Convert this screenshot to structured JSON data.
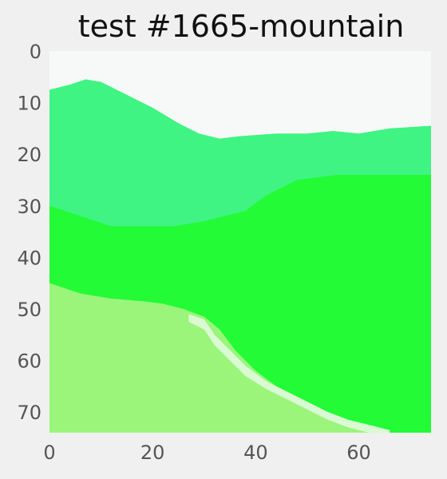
{
  "figure": {
    "background": "#f0f0f0"
  },
  "chart_data": {
    "type": "heatmap",
    "title": "test #1665-mountain",
    "xlabel": "",
    "ylabel": "",
    "x_ticks": [
      0,
      20,
      40,
      60
    ],
    "y_ticks": [
      0,
      10,
      20,
      30,
      40,
      50,
      60,
      70
    ],
    "xlim": [
      0,
      74
    ],
    "ylim": [
      74,
      0
    ],
    "grid": false,
    "colors": {
      "sky": "#f6f9f8",
      "upper_slope": "#3ff483",
      "forest": "#22fb36",
      "meadow": "#9af57a",
      "trail": "#d9fad2",
      "tick_label": "#555555",
      "title": "#111111"
    },
    "regions": [
      {
        "name": "sky",
        "top_edge_points": [
          [
            0,
            0
          ],
          [
            74,
            0
          ]
        ],
        "bottom_edge_points": [
          [
            0,
            7.5
          ],
          [
            4,
            6.5
          ],
          [
            7,
            5.5
          ],
          [
            10,
            6
          ],
          [
            14,
            8
          ],
          [
            20,
            11
          ],
          [
            25,
            14
          ],
          [
            29,
            16
          ],
          [
            33,
            17
          ],
          [
            37,
            16.5
          ],
          [
            44,
            16
          ],
          [
            50,
            16
          ],
          [
            55,
            15.5
          ],
          [
            60,
            16
          ],
          [
            66,
            15
          ],
          [
            74,
            14.5
          ]
        ]
      },
      {
        "name": "upper_slope",
        "top_edge_points": [
          [
            0,
            7.5
          ],
          [
            4,
            6.5
          ],
          [
            7,
            5.5
          ],
          [
            10,
            6
          ],
          [
            14,
            8
          ],
          [
            20,
            11
          ],
          [
            25,
            14
          ],
          [
            29,
            16
          ],
          [
            33,
            17
          ],
          [
            37,
            16.5
          ],
          [
            44,
            16
          ],
          [
            50,
            16
          ],
          [
            55,
            15.5
          ],
          [
            60,
            16
          ],
          [
            66,
            15
          ],
          [
            74,
            14.5
          ]
        ],
        "bottom_edge_points": [
          [
            0,
            30
          ],
          [
            6,
            32
          ],
          [
            12,
            34
          ],
          [
            18,
            34
          ],
          [
            24,
            34
          ],
          [
            30,
            33
          ],
          [
            34,
            32
          ],
          [
            38,
            31
          ],
          [
            42,
            28
          ],
          [
            48,
            25
          ],
          [
            56,
            24
          ],
          [
            64,
            24
          ],
          [
            74,
            24
          ]
        ]
      },
      {
        "name": "forest",
        "top_edge_points": [
          [
            0,
            30
          ],
          [
            6,
            32
          ],
          [
            12,
            34
          ],
          [
            18,
            34
          ],
          [
            24,
            34
          ],
          [
            30,
            33
          ],
          [
            34,
            32
          ],
          [
            38,
            31
          ],
          [
            42,
            28
          ],
          [
            48,
            25
          ],
          [
            56,
            24
          ],
          [
            64,
            24
          ],
          [
            74,
            24
          ]
        ],
        "bottom_edge_points": [
          [
            0,
            74
          ],
          [
            74,
            74
          ]
        ]
      },
      {
        "name": "meadow",
        "top_edge_points": [
          [
            0,
            45
          ],
          [
            6,
            47
          ],
          [
            12,
            48
          ],
          [
            18,
            48.5
          ],
          [
            22,
            49
          ],
          [
            26,
            50
          ],
          [
            30,
            51.5
          ],
          [
            33,
            54
          ],
          [
            36,
            58
          ],
          [
            40,
            62
          ],
          [
            44,
            65
          ],
          [
            48,
            67
          ],
          [
            52,
            69
          ],
          [
            56,
            71
          ],
          [
            60,
            72.5
          ],
          [
            64,
            73.5
          ],
          [
            66,
            74
          ]
        ],
        "bottom_edge_points": [
          [
            0,
            74
          ],
          [
            66,
            74
          ]
        ]
      },
      {
        "name": "trail",
        "top_edge_points": [
          [
            27,
            51
          ],
          [
            30,
            52
          ],
          [
            32,
            55
          ],
          [
            35,
            58
          ],
          [
            38,
            61
          ],
          [
            42,
            64
          ],
          [
            46,
            66
          ],
          [
            50,
            68
          ],
          [
            54,
            70
          ],
          [
            58,
            71.5
          ],
          [
            62,
            72.5
          ],
          [
            66,
            73.5
          ]
        ],
        "bottom_edge_points": [
          [
            27,
            52.5
          ],
          [
            30,
            54
          ],
          [
            32,
            57
          ],
          [
            35,
            60
          ],
          [
            38,
            63
          ],
          [
            42,
            65.5
          ],
          [
            46,
            67.5
          ],
          [
            50,
            69.5
          ],
          [
            54,
            71.5
          ],
          [
            58,
            73
          ],
          [
            62,
            74
          ],
          [
            66,
            74
          ]
        ]
      }
    ]
  }
}
